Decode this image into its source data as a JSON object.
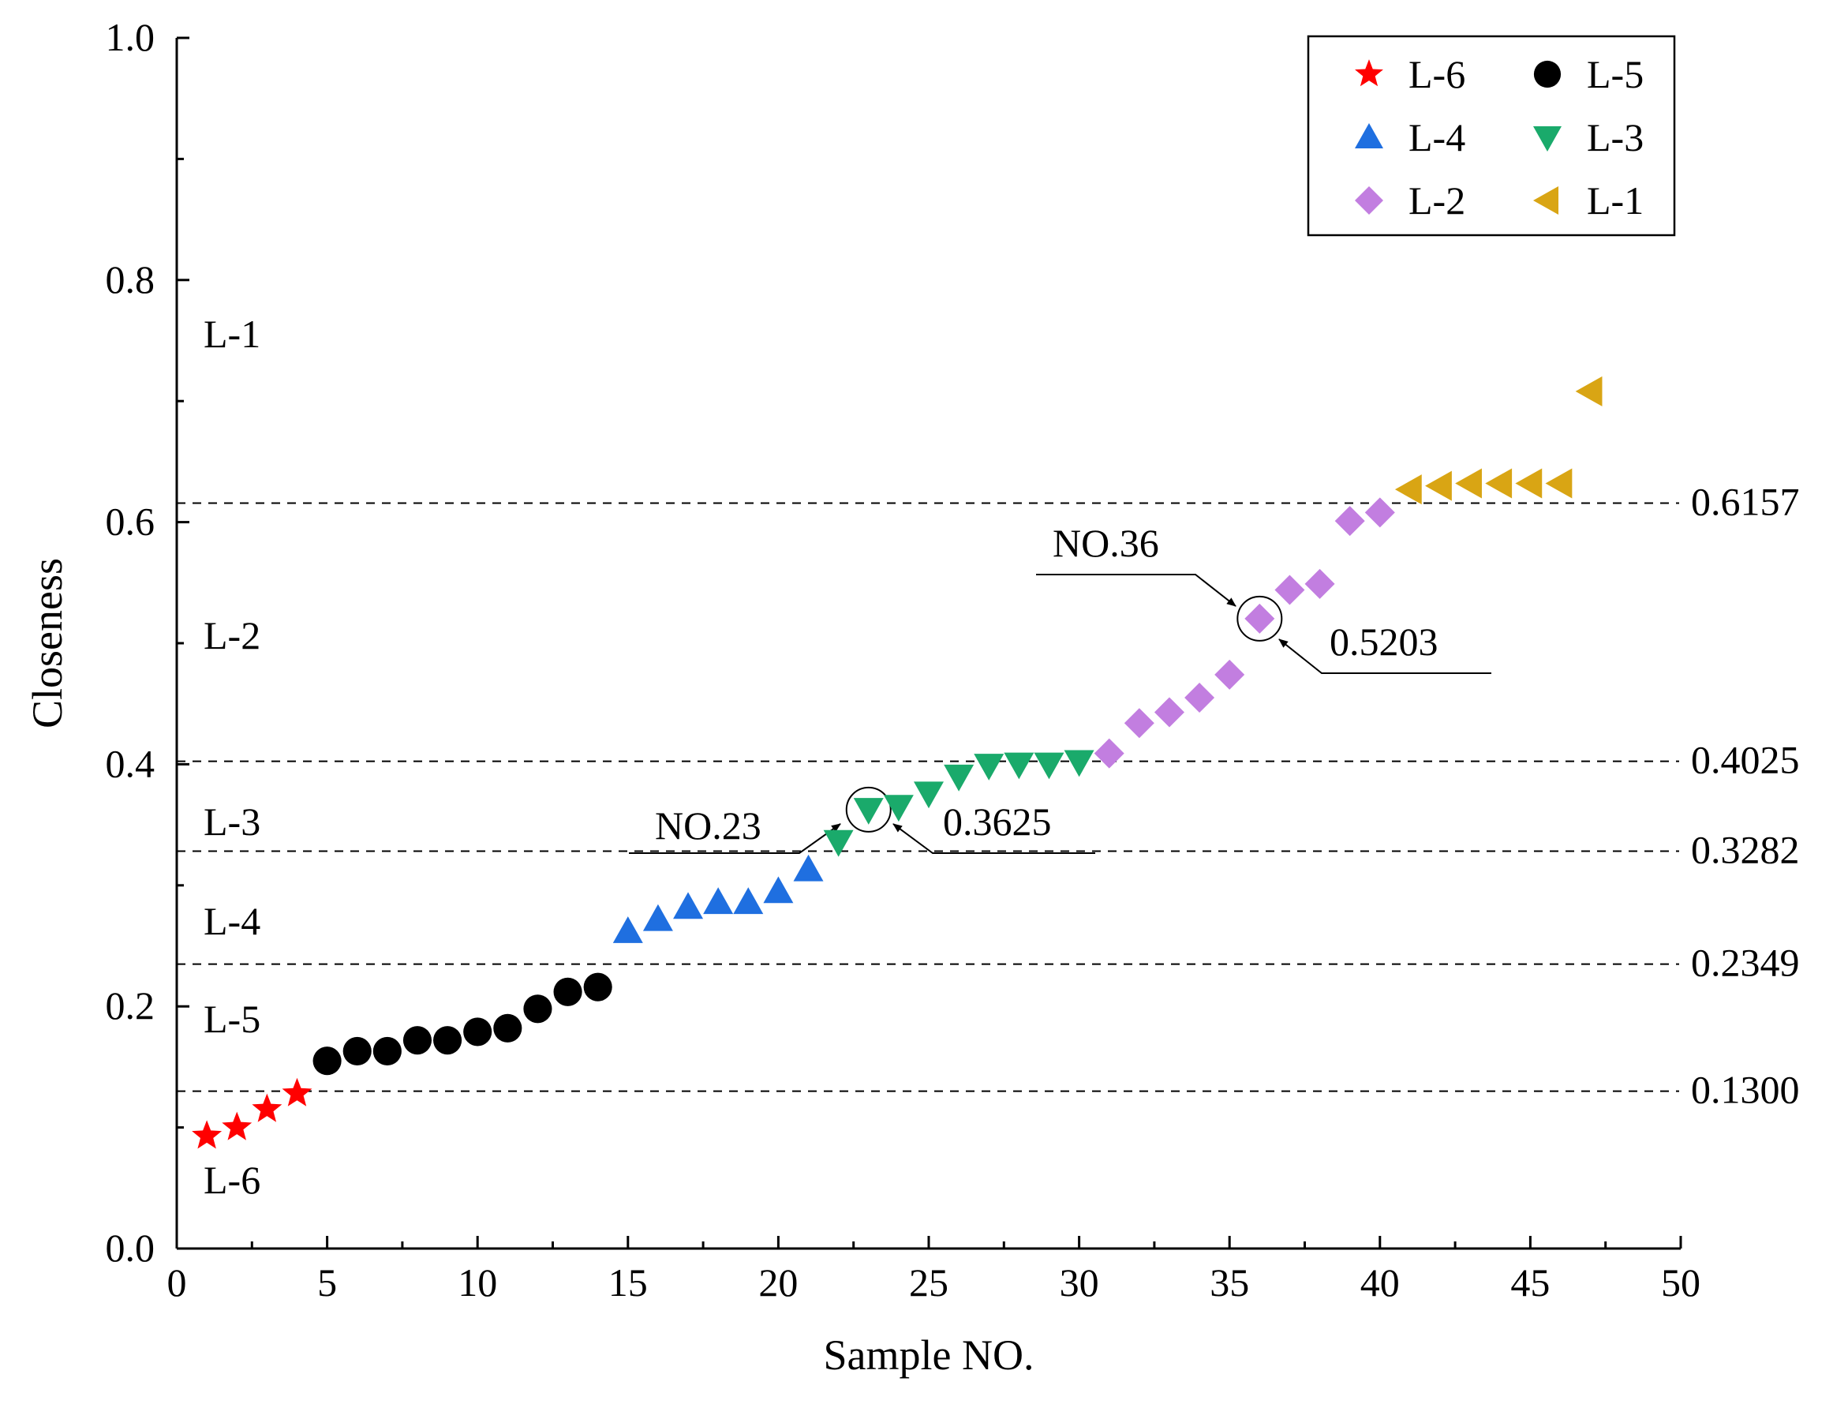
{
  "chart_data": {
    "type": "scatter",
    "xlabel": "Sample NO.",
    "ylabel": "Closeness",
    "xlim": [
      0,
      50
    ],
    "ylim": [
      0,
      1.0
    ],
    "x_ticks": [
      "0",
      "5",
      "10",
      "15",
      "20",
      "25",
      "30",
      "35",
      "40",
      "45",
      "50"
    ],
    "y_ticks": [
      "0.0",
      "0.2",
      "0.4",
      "0.6",
      "0.8",
      "1.0"
    ],
    "grid": false,
    "legend_position": "top-right",
    "series": [
      {
        "name": "L-6",
        "marker": "star",
        "color": "#ff0000",
        "points": [
          [
            1,
            0.093
          ],
          [
            2,
            0.1
          ],
          [
            3,
            0.115
          ],
          [
            4,
            0.128
          ]
        ]
      },
      {
        "name": "L-5",
        "marker": "circle",
        "color": "#000000",
        "points": [
          [
            5,
            0.155
          ],
          [
            6,
            0.163
          ],
          [
            7,
            0.163
          ],
          [
            8,
            0.172
          ],
          [
            9,
            0.172
          ],
          [
            10,
            0.179
          ],
          [
            11,
            0.182
          ],
          [
            12,
            0.198
          ],
          [
            13,
            0.212
          ],
          [
            14,
            0.216
          ]
        ]
      },
      {
        "name": "L-4",
        "marker": "triangle-up",
        "color": "#1f6fe0",
        "points": [
          [
            15,
            0.262
          ],
          [
            16,
            0.272
          ],
          [
            17,
            0.282
          ],
          [
            18,
            0.286
          ],
          [
            19,
            0.286
          ],
          [
            20,
            0.295
          ],
          [
            21,
            0.313
          ]
        ]
      },
      {
        "name": "L-3",
        "marker": "triangle-down",
        "color": "#1aaa6b",
        "points": [
          [
            22,
            0.336
          ],
          [
            23,
            0.3625
          ],
          [
            24,
            0.365
          ],
          [
            25,
            0.376
          ],
          [
            26,
            0.39
          ],
          [
            27,
            0.399
          ],
          [
            28,
            0.4
          ],
          [
            29,
            0.4
          ],
          [
            30,
            0.402
          ]
        ]
      },
      {
        "name": "L-2",
        "marker": "diamond",
        "color": "#c27ee0",
        "points": [
          [
            31,
            0.409
          ],
          [
            32,
            0.434
          ],
          [
            33,
            0.443
          ],
          [
            34,
            0.455
          ],
          [
            35,
            0.474
          ],
          [
            36,
            0.5203
          ],
          [
            37,
            0.544
          ],
          [
            38,
            0.549
          ],
          [
            39,
            0.601
          ],
          [
            40,
            0.608
          ]
        ]
      },
      {
        "name": "L-1",
        "marker": "triangle-left",
        "color": "#d9a514",
        "points": [
          [
            41,
            0.627
          ],
          [
            42,
            0.63
          ],
          [
            43,
            0.632
          ],
          [
            44,
            0.632
          ],
          [
            45,
            0.632
          ],
          [
            46,
            0.632
          ],
          [
            47,
            0.708
          ]
        ]
      }
    ],
    "thresholds": [
      {
        "value": 0.6157,
        "label": "0.6157"
      },
      {
        "value": 0.4025,
        "label": "0.4025"
      },
      {
        "value": 0.3282,
        "label": "0.3282"
      },
      {
        "value": 0.2349,
        "label": "0.2349"
      },
      {
        "value": 0.13,
        "label": "0.1300"
      }
    ],
    "level_labels": [
      {
        "text": "L-1",
        "y": 0.755
      },
      {
        "text": "L-2",
        "y": 0.506
      },
      {
        "text": "L-3",
        "y": 0.352
      },
      {
        "text": "L-4",
        "y": 0.27
      },
      {
        "text": "L-5",
        "y": 0.189
      },
      {
        "text": "L-6",
        "y": 0.056
      }
    ],
    "annotations": [
      {
        "sample_label": "NO.23",
        "value_label": "0.3625",
        "x": 23,
        "y": 0.3625
      },
      {
        "sample_label": "NO.36",
        "value_label": "0.5203",
        "x": 36,
        "y": 0.5203
      }
    ]
  }
}
